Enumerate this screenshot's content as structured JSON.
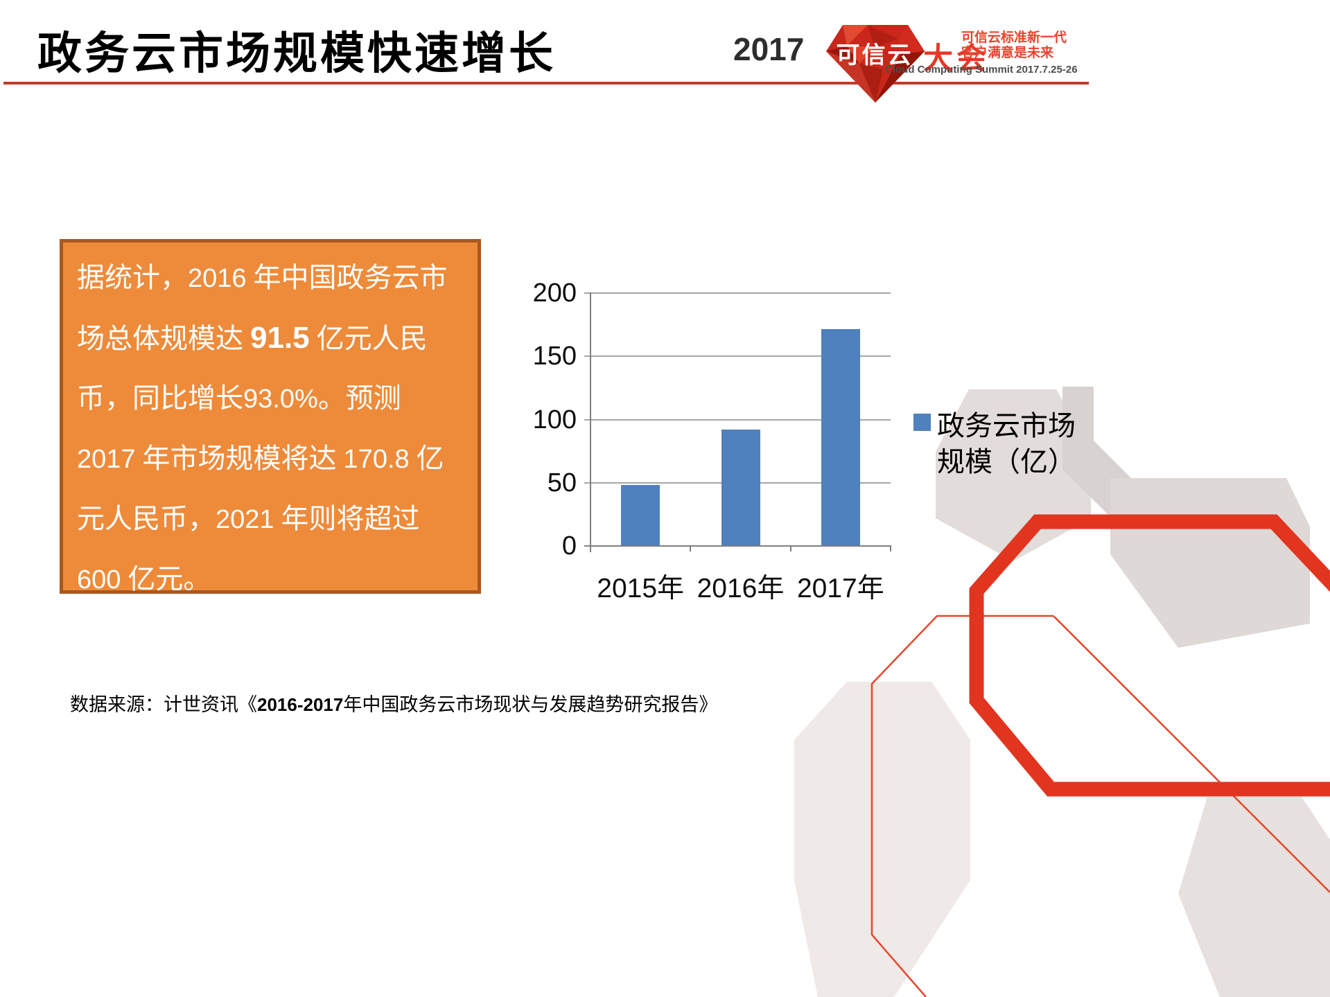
{
  "header": {
    "title": "政务云市场规模快速增长",
    "logo": {
      "year": "2017",
      "gem_text": "可信云",
      "suffix": "大会",
      "tagline_line1": "可信云标准新一代",
      "tagline_line2": "客户满意是未来",
      "subtitle_en": "Cloud Computing Summit 2017.7.25-26"
    }
  },
  "info_box": {
    "lines": [
      [
        {
          "t": "据统计，"
        },
        {
          "t": "2016",
          "num": true
        },
        {
          "t": " 年中国政务云市"
        }
      ],
      [
        {
          "t": "场总体规模达 "
        },
        {
          "t": "91.5",
          "num": true,
          "bold": true
        },
        {
          "t": " 亿元人民"
        }
      ],
      [
        {
          "t": "币，同比增长"
        },
        {
          "t": "93.0%",
          "num": true
        },
        {
          "t": "。预测"
        }
      ],
      [
        {
          "t": "2017",
          "num": true
        },
        {
          "t": " 年市场规模将达 "
        },
        {
          "t": "170.8",
          "num": true
        },
        {
          "t": " 亿"
        }
      ],
      [
        {
          "t": "元人民币，"
        },
        {
          "t": "2021",
          "num": true
        },
        {
          "t": " 年则将超过"
        }
      ],
      [
        {
          "t": "600",
          "num": true
        },
        {
          "t": " 亿元。"
        }
      ]
    ]
  },
  "chart_data": {
    "type": "bar",
    "categories": [
      "2015年",
      "2016年",
      "2017年"
    ],
    "values": [
      47.4,
      91.5,
      170.8
    ],
    "series_name": "政务云市场规模（亿）",
    "title": "",
    "xlabel": "",
    "ylabel": "",
    "ylim": [
      0,
      200
    ],
    "yticks": [
      0,
      50,
      100,
      150,
      200
    ],
    "grid": true,
    "legend_position": "right",
    "legend": {
      "line1": "政务云市场",
      "line2": "规模（亿）"
    },
    "bar_color": "#4E81BD"
  },
  "source": {
    "segments": [
      {
        "t": "数据来源：计世资讯《"
      },
      {
        "t": "2016-2017",
        "num": true
      },
      {
        "t": "年中国政务云市场现状与发展趋势研究报告》"
      }
    ]
  },
  "colors": {
    "accent_red": "#C6382C",
    "logo_red": "#E23A26",
    "tagline_red": "#E8432E",
    "bar_blue": "#4E81BD",
    "box_fill": "#ED8B3B",
    "box_border": "#A8581F",
    "grid_gray": "#A6A6A6",
    "axis_gray": "#7F7F7F"
  }
}
